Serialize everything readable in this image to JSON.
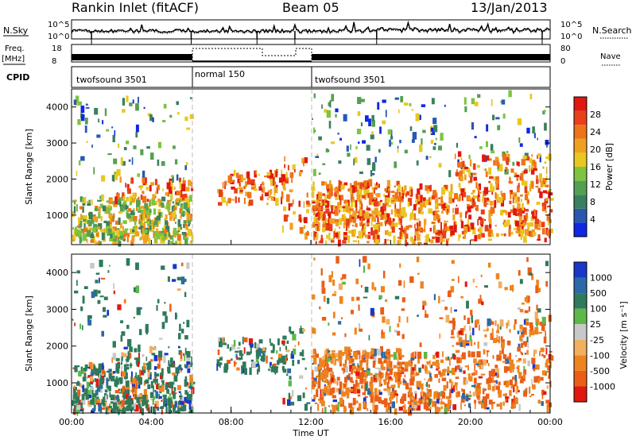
{
  "header": {
    "title": "Rankin Inlet (fitACF)",
    "beam": "Beam 05",
    "date": "13/Jan/2013"
  },
  "chart_data": [
    {
      "type": "line",
      "panel": "nsky-nsearch",
      "left_label": "N.Sky",
      "right_label": "N.Search",
      "left_ticks": [
        "10^5",
        "10^0"
      ],
      "right_ticks": [
        "10^5",
        "10^0"
      ]
    },
    {
      "type": "line",
      "panel": "freq-nave",
      "left_label_1": "Freq.",
      "left_label_2": "[MHz]",
      "right_label": "Nave",
      "freq_ticks": [
        "18",
        "8"
      ],
      "nave_ticks": [
        "80",
        "0"
      ]
    },
    {
      "type": "table",
      "panel": "cpid",
      "label": "CPID",
      "segments": [
        {
          "start_hour": 0,
          "end_hour": 6,
          "name": "twofsound 3501"
        },
        {
          "start_hour": 6,
          "end_hour": 12,
          "name": "normal 150"
        },
        {
          "start_hour": 12,
          "end_hour": 24,
          "name": "twofsound 3501"
        }
      ]
    },
    {
      "type": "heatmap",
      "panel": "power",
      "ylabel": "Slant Range [km]",
      "ylim": [
        180,
        4500
      ],
      "yticks": [
        "1000",
        "2000",
        "3000",
        "4000"
      ],
      "colorbar_label": "Power [dB]",
      "colorbar_ticks": [
        "4",
        "8",
        "12",
        "16",
        "20",
        "24",
        "28"
      ],
      "colors": [
        "#1028e0",
        "#2858b0",
        "#3a7f5f",
        "#55a050",
        "#7ec440",
        "#e8c820",
        "#f0a020",
        "#ee7418",
        "#e84018",
        "#e01810"
      ]
    },
    {
      "type": "heatmap",
      "panel": "velocity",
      "ylabel": "Slant Range [km]",
      "ylim": [
        180,
        4500
      ],
      "yticks": [
        "1000",
        "2000",
        "3000",
        "4000"
      ],
      "colorbar_label": "Velocity [m s⁻¹]",
      "colorbar_ticks": [
        "1000",
        "500",
        "100",
        "25",
        "-25",
        "-100",
        "-500",
        "-1000"
      ],
      "colors": [
        "#1838c8",
        "#2a6aa8",
        "#2e7a5a",
        "#5cb848",
        "#c8c8c8",
        "#f0b060",
        "#ee8420",
        "#ea5e18",
        "#e01810"
      ],
      "xlabel": "Time UT",
      "xticks": [
        "00:00",
        "04:00",
        "08:00",
        "12:00",
        "16:00",
        "20:00",
        "00:00"
      ],
      "xlim": [
        0,
        24
      ]
    }
  ]
}
